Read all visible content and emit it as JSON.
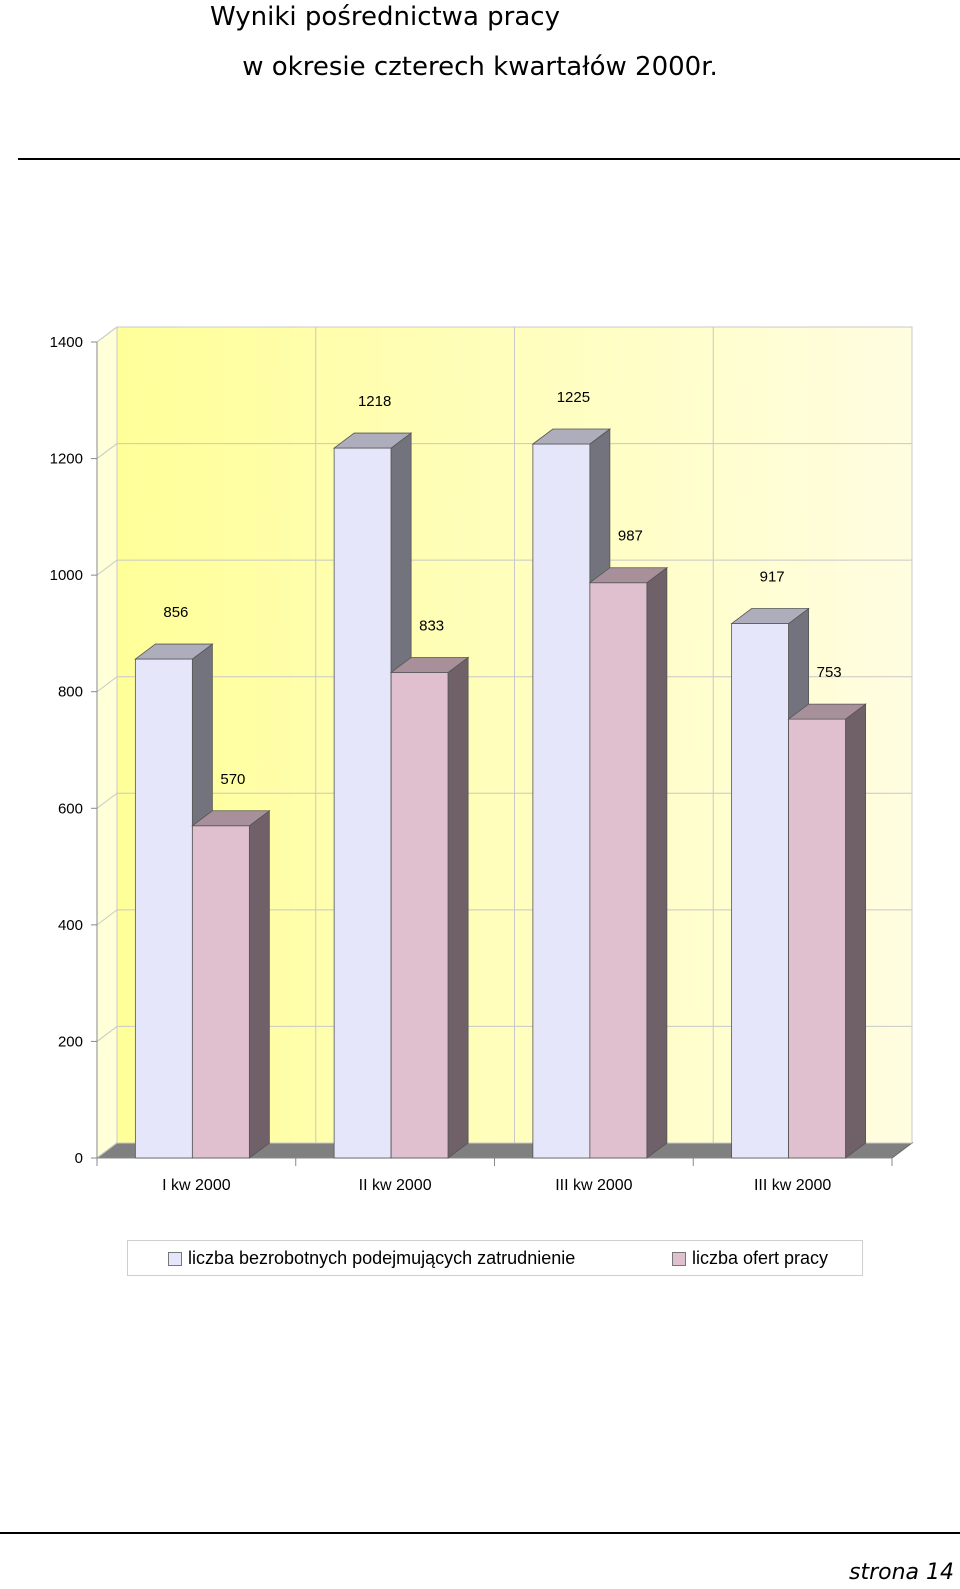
{
  "title": {
    "line1": "Wyniki pośrednictwa pracy",
    "line2": "w okresie czterech kwartałów  2000r."
  },
  "chart_data": {
    "type": "bar",
    "categories": [
      "I kw  2000",
      "II kw  2000",
      "III kw  2000",
      "III kw  2000"
    ],
    "series": [
      {
        "name": "liczba bezrobotnych podejmujących zatrudnienie",
        "values": [
          856,
          1218,
          1225,
          917
        ],
        "color": "#e6e6fa"
      },
      {
        "name": "liczba ofert pracy",
        "values": [
          570,
          833,
          987,
          753
        ],
        "color": "#e0c0cf"
      }
    ],
    "ylim": [
      0,
      1400
    ],
    "yticks": [
      0,
      200,
      400,
      600,
      800,
      1000,
      1200,
      1400
    ],
    "grid": true,
    "legend": "bottom"
  },
  "colors": {
    "wall_left": "#ffff99",
    "wall_right": "#fffde0",
    "floor": "#808080"
  },
  "footer": {
    "page_label": "strona  14"
  }
}
